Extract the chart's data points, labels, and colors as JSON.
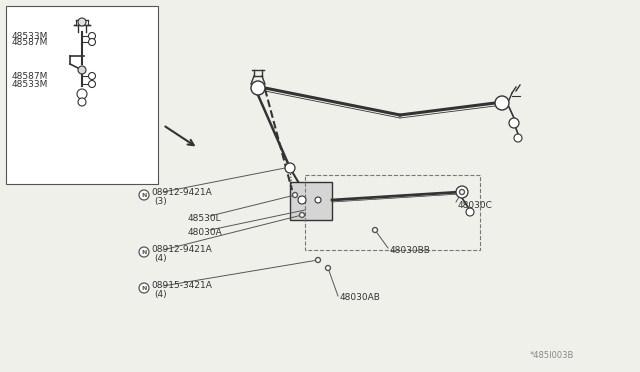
{
  "bg_color": "#f0f0eb",
  "line_color": "#555555",
  "dark_color": "#333333",
  "text_color": "#333333",
  "gray_color": "#999999",
  "title_code": "*485I003B",
  "labels": {
    "48533M_1": "48533M",
    "48587M_1": "48587M",
    "48587M_2": "48587M",
    "48533M_2": "48533M",
    "08912_9421A_1": "08912-9421A",
    "qty3": "(3)",
    "48530L": "48530L",
    "48030A": "48030A",
    "08912_9421A_2": "08912-9421A",
    "qty4a": "(4)",
    "08915_3421A": "08915-3421A",
    "qty4b": "(4)",
    "48030AB": "48030AB",
    "48030BB": "48030BB",
    "48030C": "48030C"
  }
}
